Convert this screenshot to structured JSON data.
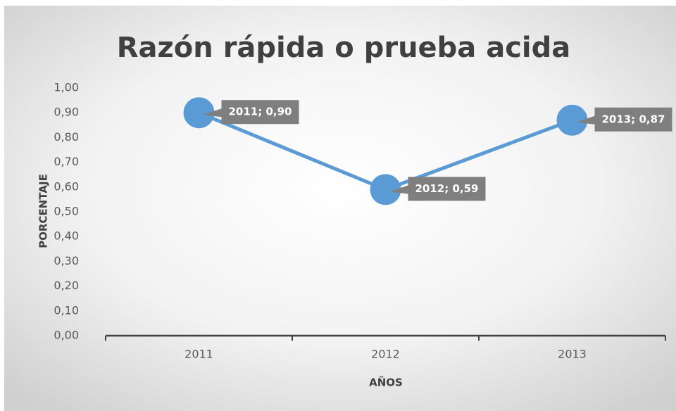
{
  "chart_data": {
    "type": "line",
    "title": "Razón rápida o prueba acida",
    "categories": [
      "2011",
      "2012",
      "2013"
    ],
    "values": [
      0.9,
      0.59,
      0.87
    ],
    "value_labels": [
      "2011; 0,90",
      "2012; 0,59",
      "2013; 0,87"
    ],
    "color": "#5b9bd5",
    "ylabel": "PORCENTAJE",
    "xlabel": "AÑOS",
    "ylim": [
      0,
      1
    ],
    "yticks": [
      {
        "value": 0,
        "label": "0,00"
      },
      {
        "value": 0.1,
        "label": "0,10"
      },
      {
        "value": 0.2,
        "label": "0,20"
      },
      {
        "value": 0.3,
        "label": "0,30"
      },
      {
        "value": 0.4,
        "label": "0,40"
      },
      {
        "value": 0.5,
        "label": "0,50"
      },
      {
        "value": 0.6,
        "label": "0,60"
      },
      {
        "value": 0.7,
        "label": "0,70"
      },
      {
        "value": 0.8,
        "label": "0,80"
      },
      {
        "value": 0.9,
        "label": "0,90"
      },
      {
        "value": 1,
        "label": "1,00"
      }
    ]
  }
}
